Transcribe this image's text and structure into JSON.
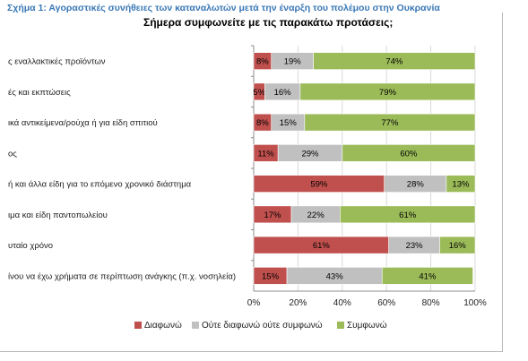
{
  "caption": "Σχήμα 1: Αγοραστικές συνήθειες των καταναλωτών μετά την έναρξη του πολέμου στην Ουκρανία",
  "chart_data": {
    "type": "bar",
    "orientation": "horizontal",
    "stacked": true,
    "title": "Σήμερα συμφωνείτε με τις παρακάτω προτάσεις;",
    "categories": [
      "ς εναλλακτικές προϊόντων",
      "ές και εκπτώσεις",
      "ικά αντικείμενα/ρούχα ή για είδη σπιτιού",
      "ος",
      "ή και άλλα είδη για το επόμενο χρονικό διάστημα",
      "ιμα και είδη παντοπωλείου",
      "υταίο χρόνο",
      "ίνου να έχω χρήματα σε περίπτωση ανάγκης (π.χ. νοσηλεία)"
    ],
    "series": [
      {
        "name": "Διαφωνώ",
        "color": "#c0504d",
        "values": [
          8,
          5,
          8,
          11,
          59,
          17,
          61,
          15
        ],
        "labels": [
          "8%",
          "5%",
          "8%",
          "11%",
          "59%",
          "17%",
          "61%",
          "15%"
        ]
      },
      {
        "name": "Ούτε διαφωνώ ούτε συμφωνώ",
        "color": "#c0c0c0",
        "values": [
          19,
          16,
          15,
          29,
          28,
          22,
          23,
          43
        ],
        "labels": [
          "19%",
          "16%",
          "15%",
          "29%",
          "28%",
          "22%",
          "23%",
          "43%"
        ]
      },
      {
        "name": "Συμφωνώ",
        "color": "#9bbb59",
        "values": [
          74,
          79,
          77,
          60,
          13,
          61,
          16,
          41
        ],
        "labels": [
          "74%",
          "79%",
          "77%",
          "60%",
          "13%",
          "61%",
          "16%",
          "41%"
        ]
      }
    ],
    "xlim": [
      0,
      100
    ],
    "xticks": [
      "0%",
      "20%",
      "40%",
      "60%",
      "80%",
      "100%"
    ],
    "grid": true,
    "legend": "bottom"
  }
}
